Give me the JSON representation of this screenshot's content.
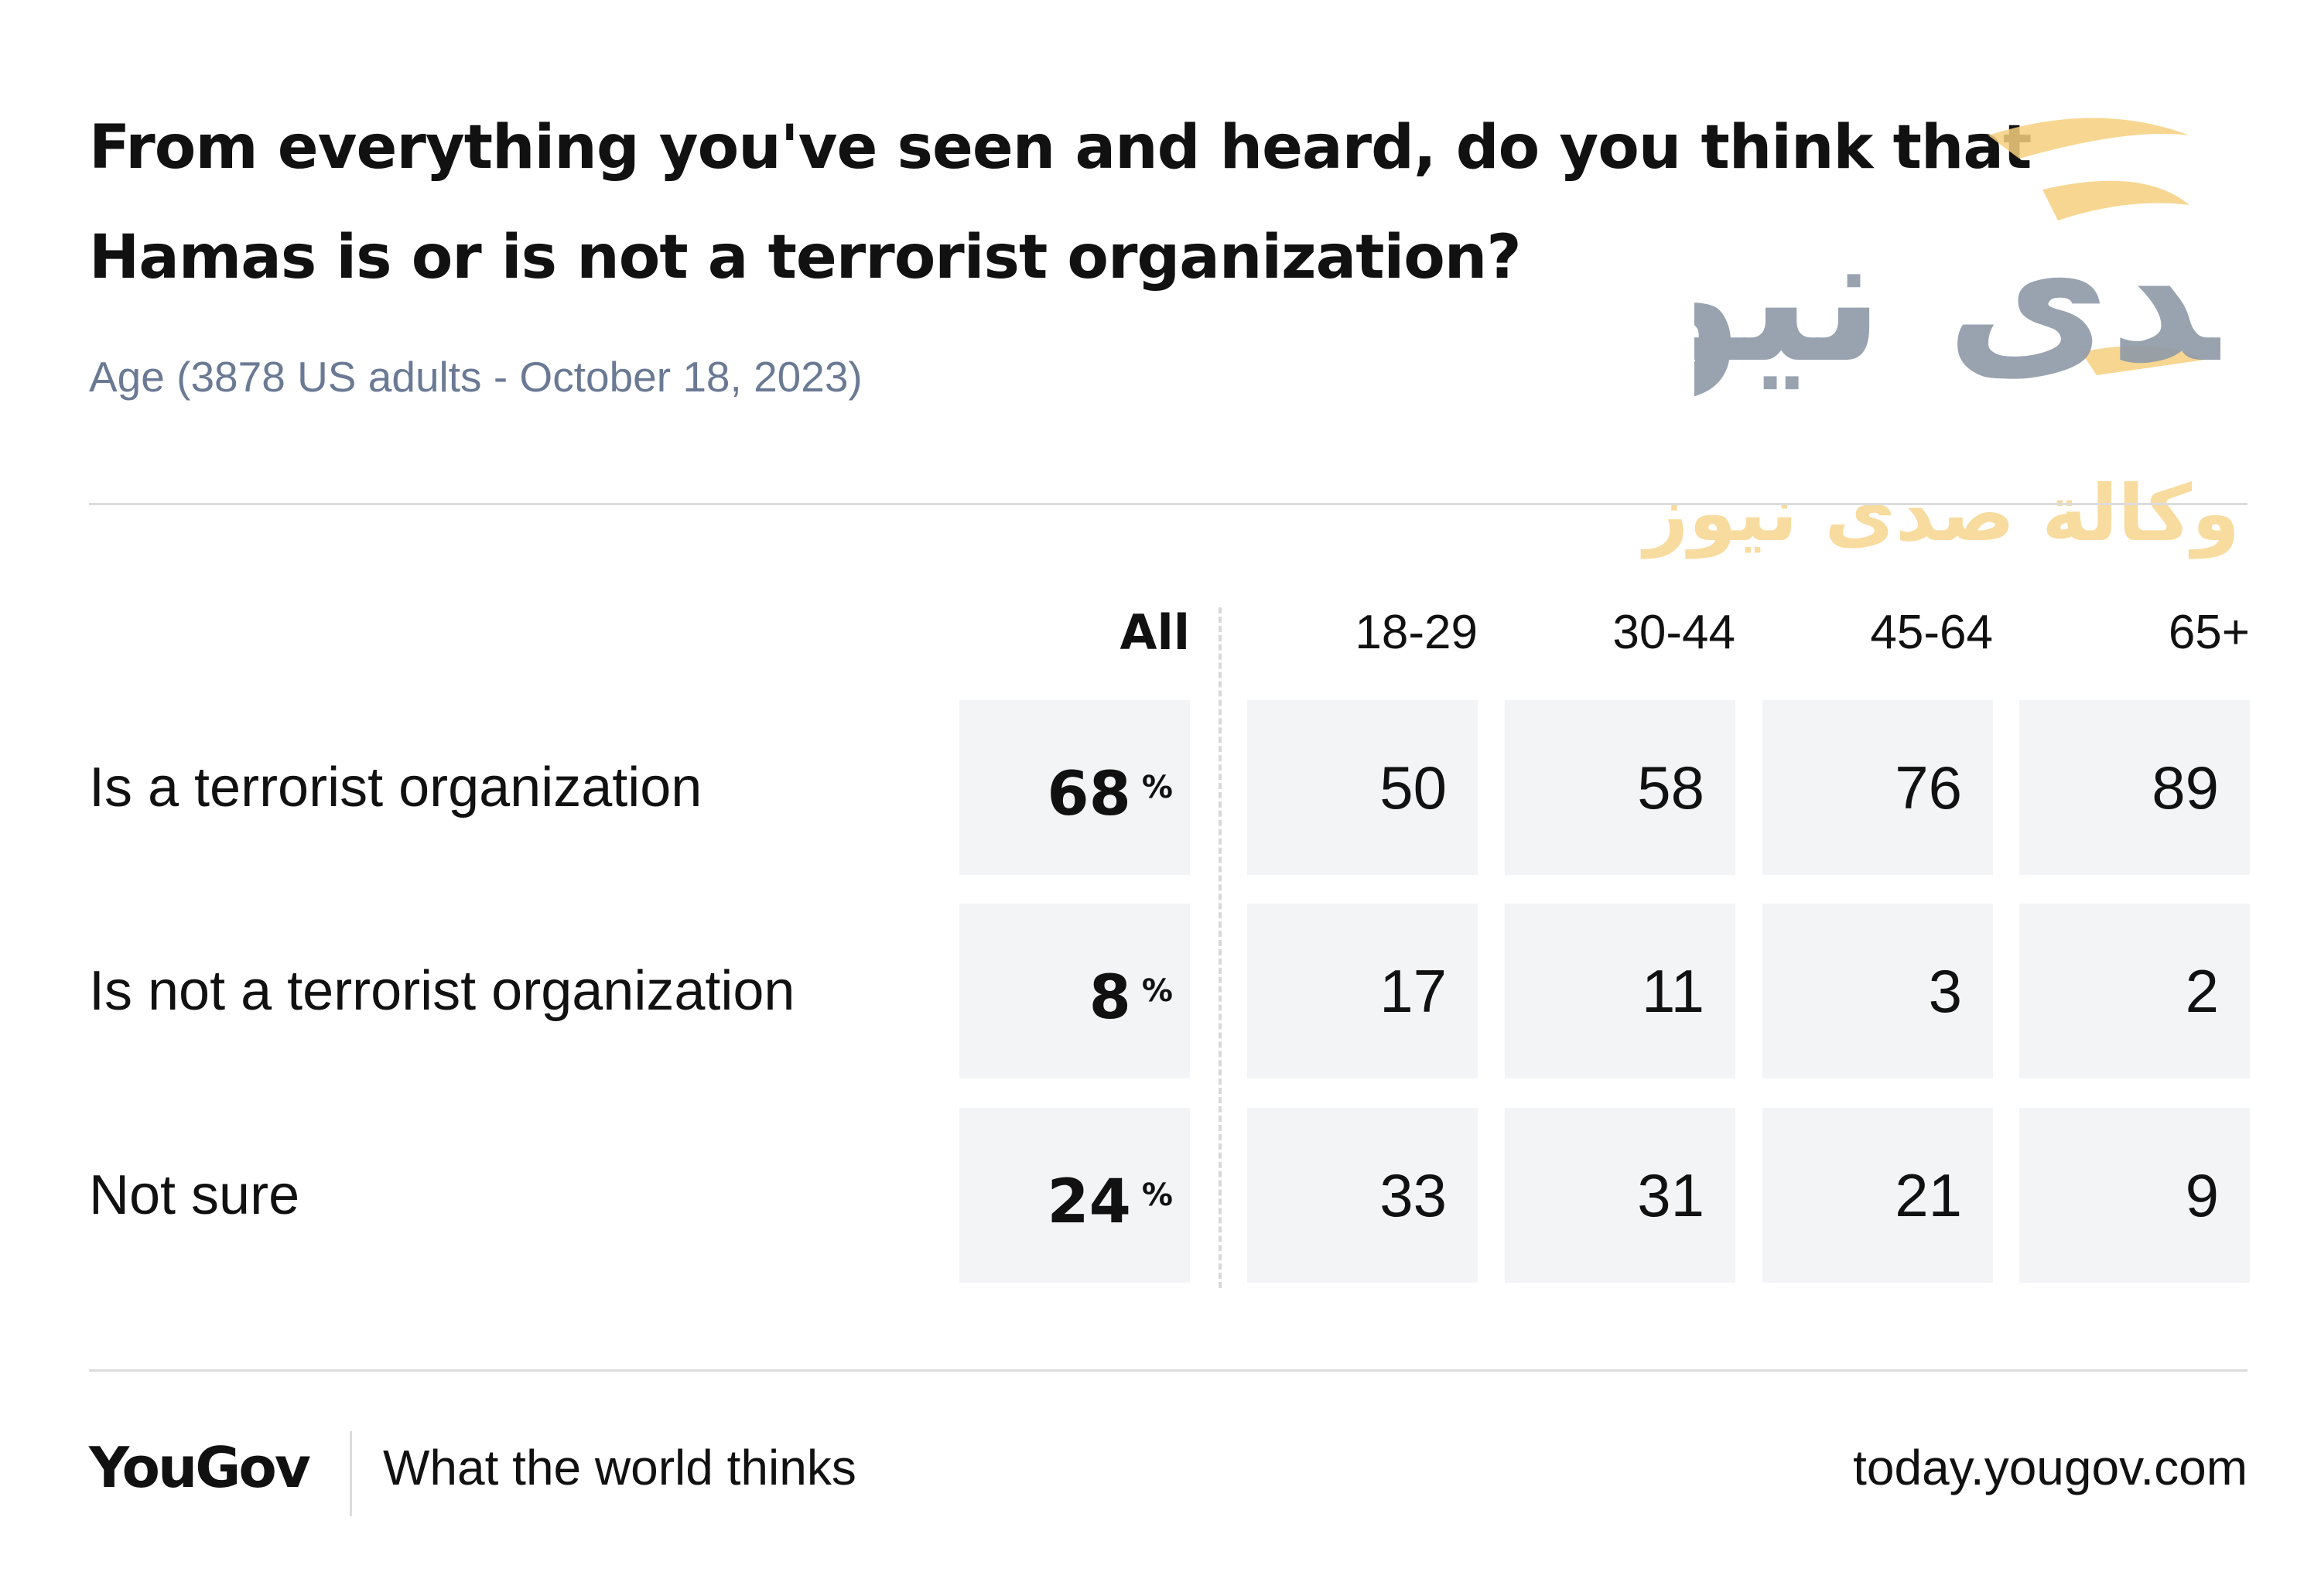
{
  "chart_data": {
    "type": "table",
    "title": "From everything you've seen and heard, do you think that Hamas is or is not a terrorist organization?",
    "subtitle": "Age (3878 US adults - October 18, 2023)",
    "columns": [
      "All",
      "18-29",
      "30-44",
      "45-64",
      "65+"
    ],
    "percent_sign": "%",
    "rows": [
      {
        "label": "Is a terrorist organization",
        "all": "68",
        "values": [
          "50",
          "58",
          "76",
          "89"
        ]
      },
      {
        "label": "Is not a terrorist organization",
        "all": "8",
        "values": [
          "17",
          "11",
          "3",
          "2"
        ]
      },
      {
        "label": "Not sure",
        "all": "24",
        "values": [
          "33",
          "31",
          "21",
          "9"
        ]
      }
    ]
  },
  "footer": {
    "brand": "YouGov",
    "tagline": "What the world thinks",
    "site": "today.yougov.com"
  },
  "watermark": {
    "text": "وكالة صدى نيوز",
    "logo_text": "صدى نيوز"
  },
  "colors": {
    "cell_bg": "#f3f4f6",
    "subtitle": "#6b7a94",
    "watermark_gold": "#f6cf7e",
    "watermark_gray": "#8e9aa8"
  }
}
